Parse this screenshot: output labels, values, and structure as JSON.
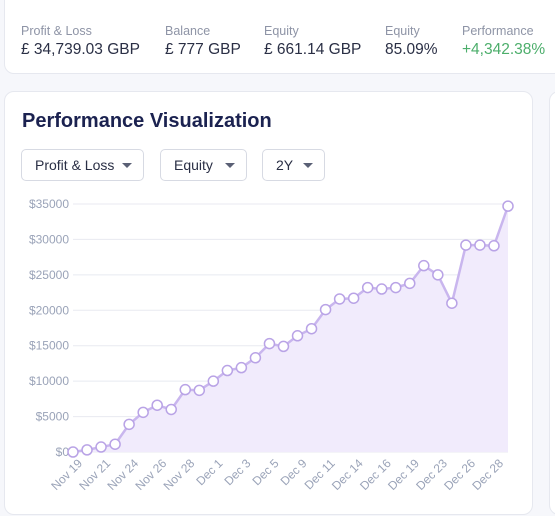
{
  "stats": [
    {
      "label": "Profit & Loss",
      "value": "£ 34,739.03 GBP"
    },
    {
      "label": "Balance",
      "value": "£ 777 GBP"
    },
    {
      "label": "Equity",
      "value": "£ 661.14 GBP"
    },
    {
      "label": "Equity",
      "value": "85.09%"
    },
    {
      "label": "Performance",
      "value": "+4,342.38%"
    }
  ],
  "colors": {
    "positive": "#4cae6b",
    "line": "#c9b6ee",
    "fill": "#f1ebfc",
    "marker_stroke": "#b9a3e6"
  },
  "perf": {
    "title": "Performance Visualization",
    "dropdowns": [
      {
        "label": "Profit & Loss",
        "icon": "chevron-down-icon"
      },
      {
        "label": "Equity",
        "icon": "chevron-down-icon"
      },
      {
        "label": "2Y",
        "icon": "chevron-down-icon"
      }
    ]
  },
  "chart_data": {
    "type": "area",
    "ylim": [
      0,
      35000
    ],
    "y_ticks": [
      "$0",
      "$5000",
      "$10000",
      "$15000",
      "$20000",
      "$25000",
      "$30000",
      "$35000"
    ],
    "x_ticks": [
      "Nov 19",
      "Nov 21",
      "Nov 24",
      "Nov 26",
      "Nov 28",
      "Dec 1",
      "Dec 3",
      "Dec 5",
      "Dec 9",
      "Dec 11",
      "Dec 14",
      "Dec 16",
      "Dec 19",
      "Dec 23",
      "Dec 26",
      "Dec 28"
    ],
    "grid": true,
    "values": [
      0,
      300,
      700,
      1100,
      3900,
      5600,
      6600,
      6000,
      8800,
      8700,
      10000,
      11500,
      11900,
      13300,
      15300,
      14900,
      16400,
      17400,
      20100,
      21600,
      21700,
      23200,
      23000,
      23200,
      23800,
      26300,
      25000,
      21000,
      29200,
      29200,
      29100,
      34700
    ]
  }
}
